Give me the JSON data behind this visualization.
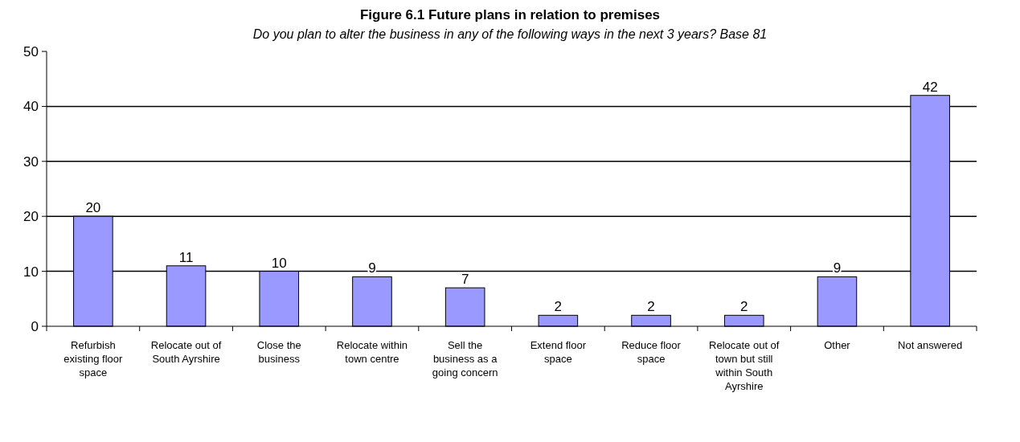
{
  "chart_data": {
    "type": "bar",
    "title": "Figure 6.1 Future plans in relation to premises",
    "subtitle": "Do you plan to alter the business in any of the following ways in the next 3 years?  Base 81",
    "categories": [
      "Refurbish existing floor space",
      "Relocate out of South Ayrshire",
      "Close the business",
      "Relocate within town centre",
      "Sell the business as a going concern",
      "Extend floor space",
      "Reduce floor space",
      "Relocate out of town but still within South Ayrshire",
      "Other",
      "Not answered"
    ],
    "values": [
      20,
      11,
      10,
      9,
      7,
      2,
      2,
      2,
      9,
      42
    ],
    "color": "#9999ff",
    "ylim": [
      0,
      50
    ],
    "yticks": [
      0,
      10,
      20,
      30,
      40,
      50
    ],
    "grid": "y",
    "data_labels": true
  }
}
